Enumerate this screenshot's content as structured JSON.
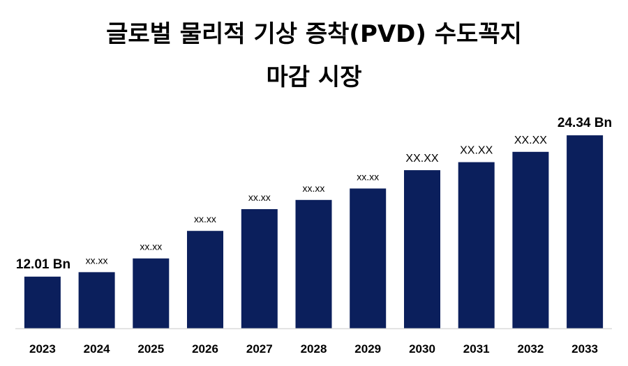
{
  "title_line1": "글로벌 물리적 기상 증착(PVD) 수도꼭지",
  "title_line2": "마감 시장",
  "colors": {
    "bar": "#0b1f5c",
    "axis": "#d9d9d9",
    "text": "#000000"
  },
  "chart_data": {
    "type": "bar",
    "title": "글로벌 물리적 기상 증착(PVD) 수도꼭지 마감 시장",
    "categories": [
      "2023",
      "2024",
      "2025",
      "2026",
      "2027",
      "2028",
      "2029",
      "2030",
      "2031",
      "2032",
      "2033"
    ],
    "values": [
      12.01,
      12.4,
      13.6,
      16.0,
      17.9,
      18.7,
      19.7,
      21.3,
      22.0,
      22.9,
      24.34
    ],
    "data_labels": [
      "12.01 Bn",
      "xx.xx",
      "xx.xx",
      "xx.xx",
      "xx.xx",
      "xx.xx",
      "xx.xx",
      "XX.XX",
      "XX.XX",
      "XX.XX",
      "24.34 Bn"
    ],
    "label_style": [
      "large",
      "small",
      "small",
      "small",
      "small",
      "small",
      "small",
      "medium",
      "medium",
      "medium",
      "large"
    ],
    "ylim": [
      7.5,
      25.5
    ],
    "grid": false,
    "legend": "none",
    "xlabel": "",
    "ylabel": ""
  }
}
